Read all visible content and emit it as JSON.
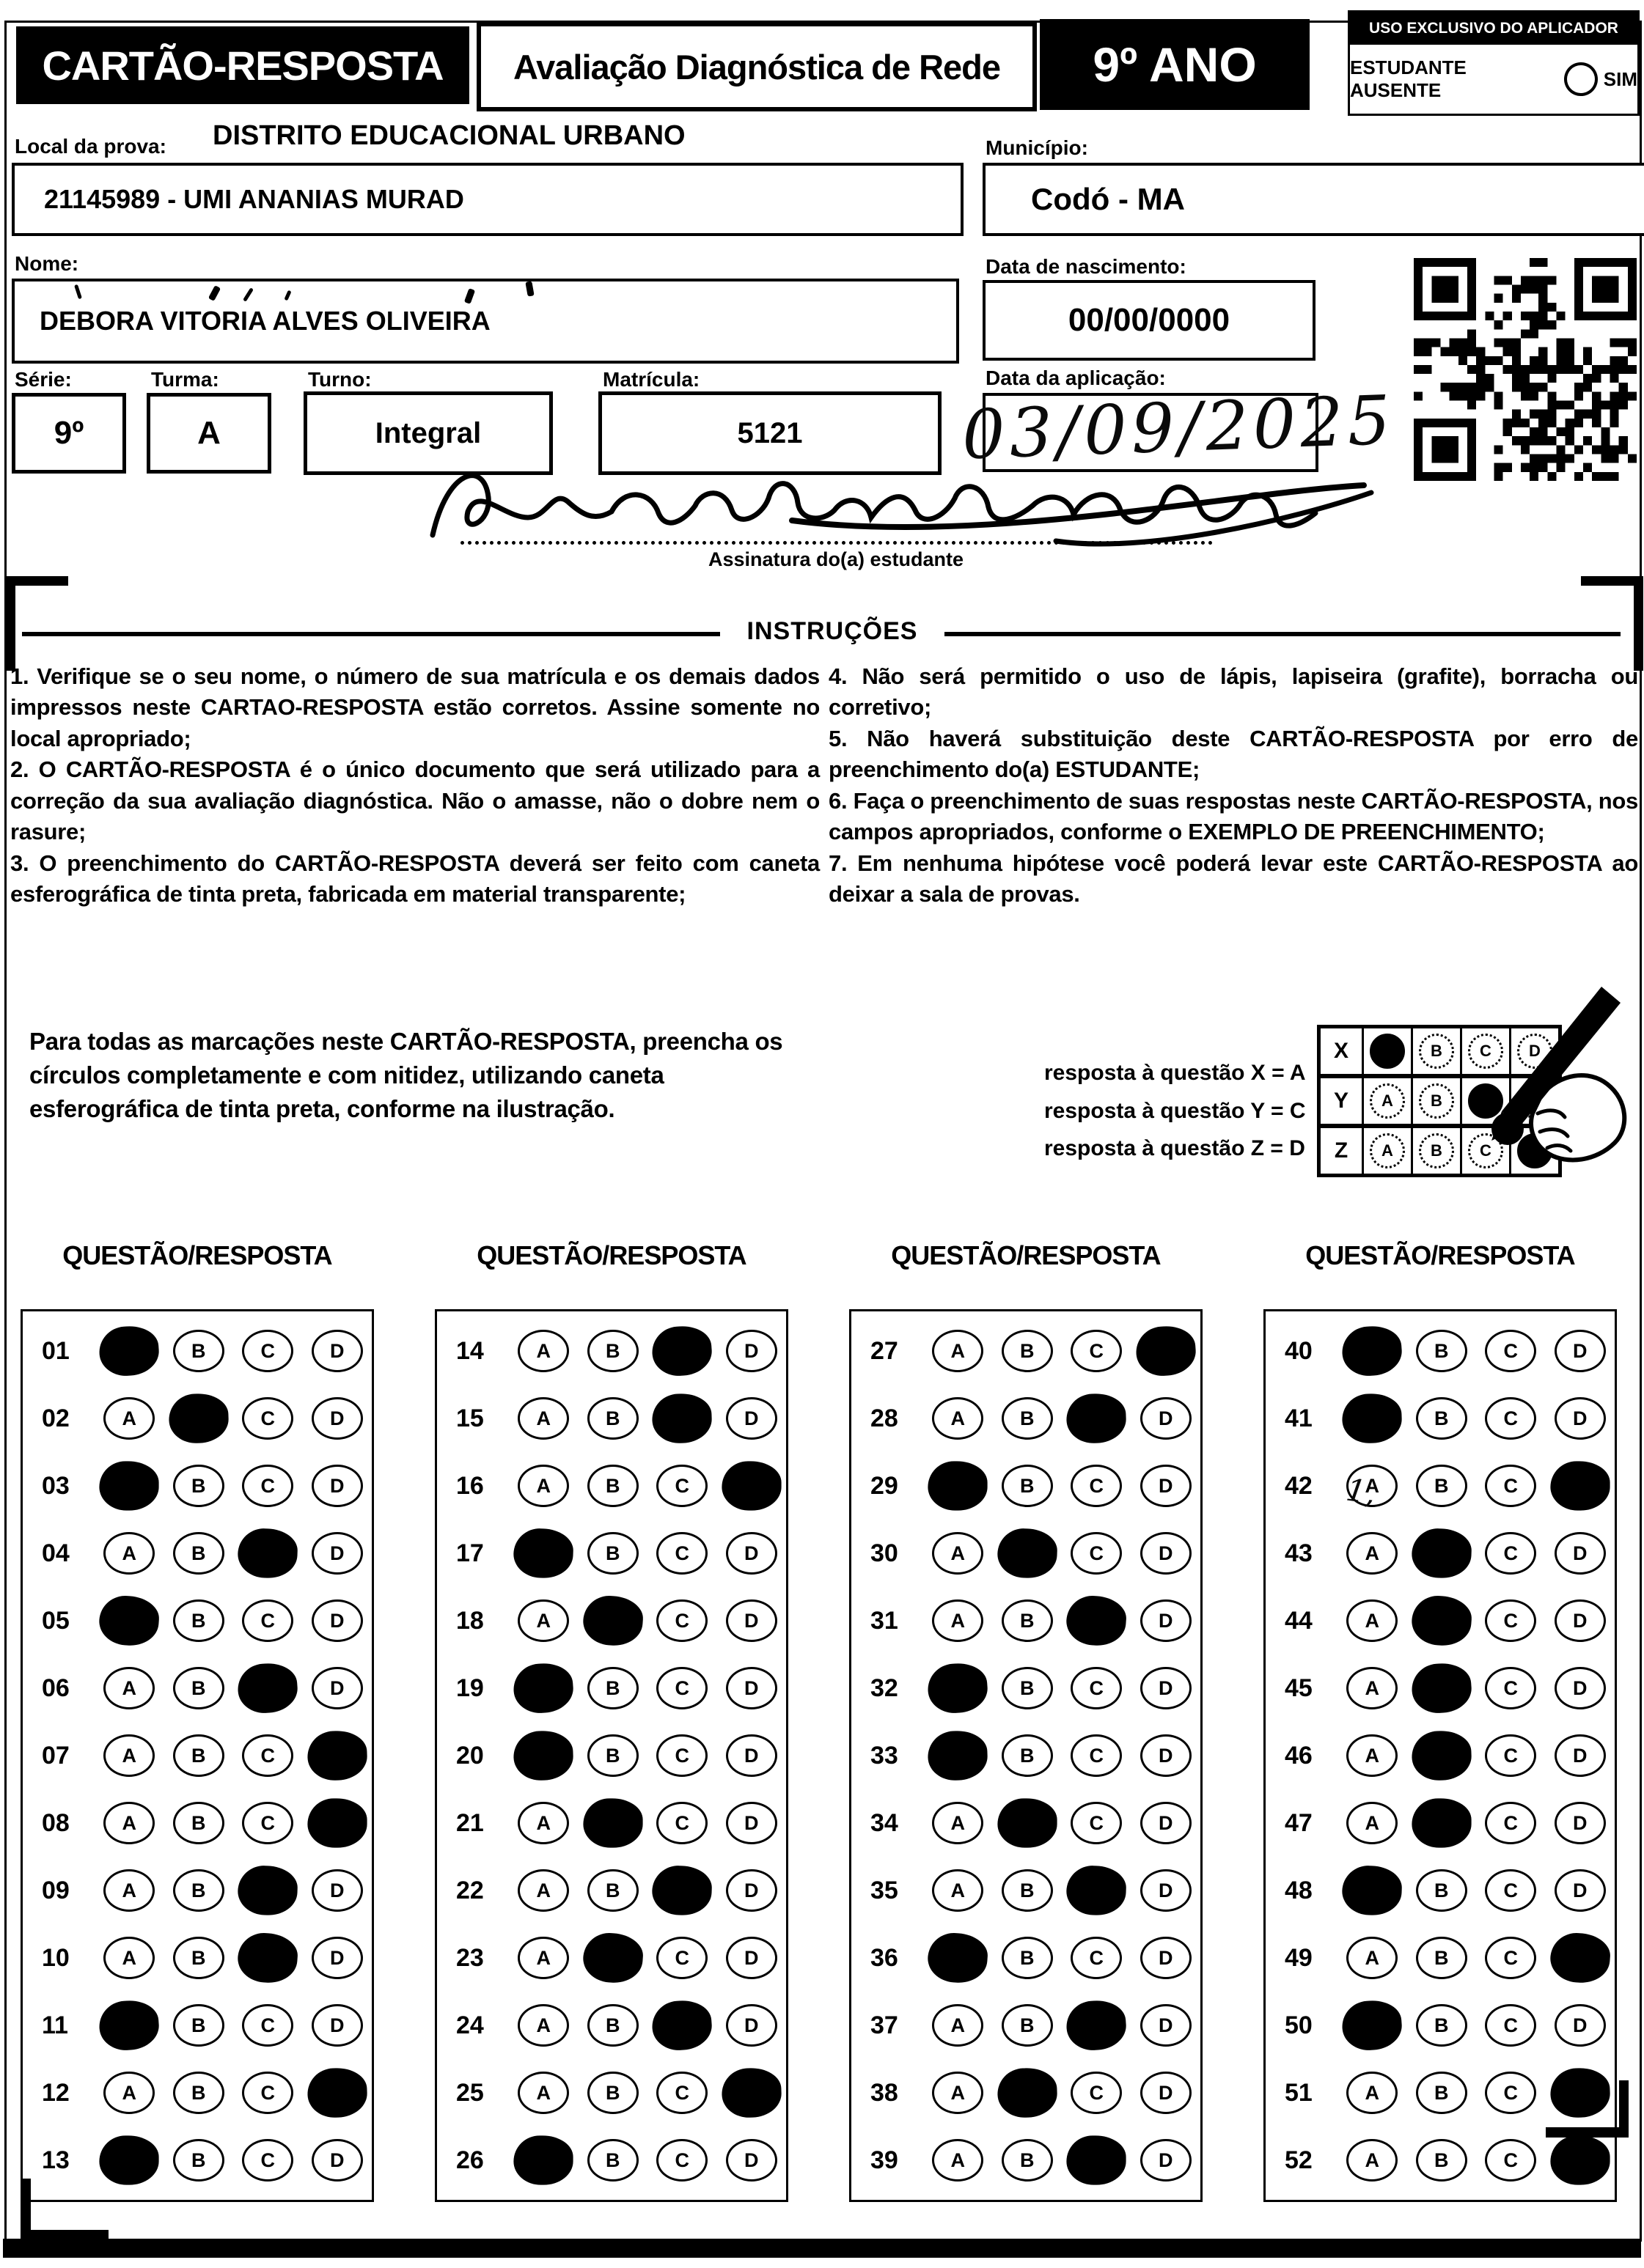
{
  "header": {
    "title": "CARTÃO-RESPOSTA",
    "subtitle": "Avaliação Diagnóstica de Rede",
    "grade": "9º ANO",
    "aplicador_box": {
      "title": "USO EXCLUSIVO DO APLICADOR",
      "absent_label": "ESTUDANTE AUSENTE",
      "absent_option": "SIM"
    }
  },
  "fields": {
    "local_label": "Local da prova:",
    "district": "DISTRITO EDUCACIONAL URBANO",
    "school": "21145989 - UMI ANANIAS MURAD",
    "municipio_label": "Município:",
    "municipio": "Codó - MA",
    "nome_label": "Nome:",
    "nome": "DEBORA VITORIA ALVES OLIVEIRA",
    "nascimento_label": "Data de nascimento:",
    "nascimento": "00/00/0000",
    "serie_label": "Série:",
    "serie": "9º",
    "turma_label": "Turma:",
    "turma": "A",
    "turno_label": "Turno:",
    "turno": "Integral",
    "matricula_label": "Matrícula:",
    "matricula": "5121",
    "aplicacao_label": "Data da aplicação:",
    "aplicacao_handwritten": "03/09/2025",
    "assinatura_label": "Assinatura do(a) estudante",
    "stray_mark": "1,"
  },
  "instructions": {
    "title": "INSTRUÇÕES",
    "left": [
      "1. Verifique se o seu nome, o número de sua matrícula e os demais dados impressos neste CARTAO-RESPOSTA estão corretos. Assine somente no local apropriado;",
      "2. O CARTÃO-RESPOSTA é o único documento que será utilizado para a correção da sua avaliação diagnóstica. Não o amasse, não o dobre nem o rasure;",
      "3. O preenchimento do CARTÃO-RESPOSTA deverá ser feito com caneta esferográfica de tinta preta, fabricada em material transparente;"
    ],
    "right": [
      "4. Não será permitido o uso de lápis, lapiseira (grafite), borracha ou corretivo;",
      "5. Não haverá substituição deste CARTÃO-RESPOSTA por erro de preenchimento do(a) ESTUDANTE;",
      "6. Faça o preenchimento de suas respostas neste CARTÃO-RESPOSTA, nos campos apropriados, conforme o EXEMPLO DE PREENCHIMENTO;",
      "7. Em nenhuma hipótese você poderá levar este CARTÃO-RESPOSTA ao deixar a sala de provas."
    ]
  },
  "example": {
    "text": "Para todas as marcações neste CARTÃO-RESPOSTA, preencha os círculos completamente e com nitidez, utilizando caneta esferográfica de tinta preta, conforme na ilustração.",
    "legend": [
      "resposta à questão X = A",
      "resposta à questão Y = C",
      "resposta à questão Z = D"
    ],
    "grid": {
      "options": [
        "A",
        "B",
        "C",
        "D"
      ],
      "rows": [
        {
          "label": "X",
          "filled": "A"
        },
        {
          "label": "Y",
          "filled": "C"
        },
        {
          "label": "Z",
          "filled": "D"
        }
      ]
    }
  },
  "answers": {
    "header": "QUESTÃO/RESPOSTA",
    "options": [
      "A",
      "B",
      "C",
      "D"
    ],
    "columns": [
      {
        "questions": [
          {
            "n": "01",
            "a": "A"
          },
          {
            "n": "02",
            "a": "B"
          },
          {
            "n": "03",
            "a": "A"
          },
          {
            "n": "04",
            "a": "C"
          },
          {
            "n": "05",
            "a": "A"
          },
          {
            "n": "06",
            "a": "C"
          },
          {
            "n": "07",
            "a": "D"
          },
          {
            "n": "08",
            "a": "D"
          },
          {
            "n": "09",
            "a": "C"
          },
          {
            "n": "10",
            "a": "C"
          },
          {
            "n": "11",
            "a": "A"
          },
          {
            "n": "12",
            "a": "D"
          },
          {
            "n": "13",
            "a": "A"
          }
        ]
      },
      {
        "questions": [
          {
            "n": "14",
            "a": "C"
          },
          {
            "n": "15",
            "a": "C"
          },
          {
            "n": "16",
            "a": "D"
          },
          {
            "n": "17",
            "a": "A"
          },
          {
            "n": "18",
            "a": "B"
          },
          {
            "n": "19",
            "a": "A"
          },
          {
            "n": "20",
            "a": "A"
          },
          {
            "n": "21",
            "a": "B"
          },
          {
            "n": "22",
            "a": "C"
          },
          {
            "n": "23",
            "a": "B"
          },
          {
            "n": "24",
            "a": "C"
          },
          {
            "n": "25",
            "a": "D"
          },
          {
            "n": "26",
            "a": "A"
          }
        ]
      },
      {
        "questions": [
          {
            "n": "27",
            "a": "D"
          },
          {
            "n": "28",
            "a": "C"
          },
          {
            "n": "29",
            "a": "A"
          },
          {
            "n": "30",
            "a": "B"
          },
          {
            "n": "31",
            "a": "C"
          },
          {
            "n": "32",
            "a": "A"
          },
          {
            "n": "33",
            "a": "A"
          },
          {
            "n": "34",
            "a": "B"
          },
          {
            "n": "35",
            "a": "C"
          },
          {
            "n": "36",
            "a": "A"
          },
          {
            "n": "37",
            "a": "C"
          },
          {
            "n": "38",
            "a": "B"
          },
          {
            "n": "39",
            "a": "C"
          }
        ]
      },
      {
        "questions": [
          {
            "n": "40",
            "a": "A"
          },
          {
            "n": "41",
            "a": "A"
          },
          {
            "n": "42",
            "a": "D"
          },
          {
            "n": "43",
            "a": "B"
          },
          {
            "n": "44",
            "a": "B"
          },
          {
            "n": "45",
            "a": "B"
          },
          {
            "n": "46",
            "a": "B"
          },
          {
            "n": "47",
            "a": "B"
          },
          {
            "n": "48",
            "a": "A"
          },
          {
            "n": "49",
            "a": "D"
          },
          {
            "n": "50",
            "a": "A"
          },
          {
            "n": "51",
            "a": "D"
          },
          {
            "n": "52",
            "a": "D"
          }
        ]
      }
    ]
  }
}
